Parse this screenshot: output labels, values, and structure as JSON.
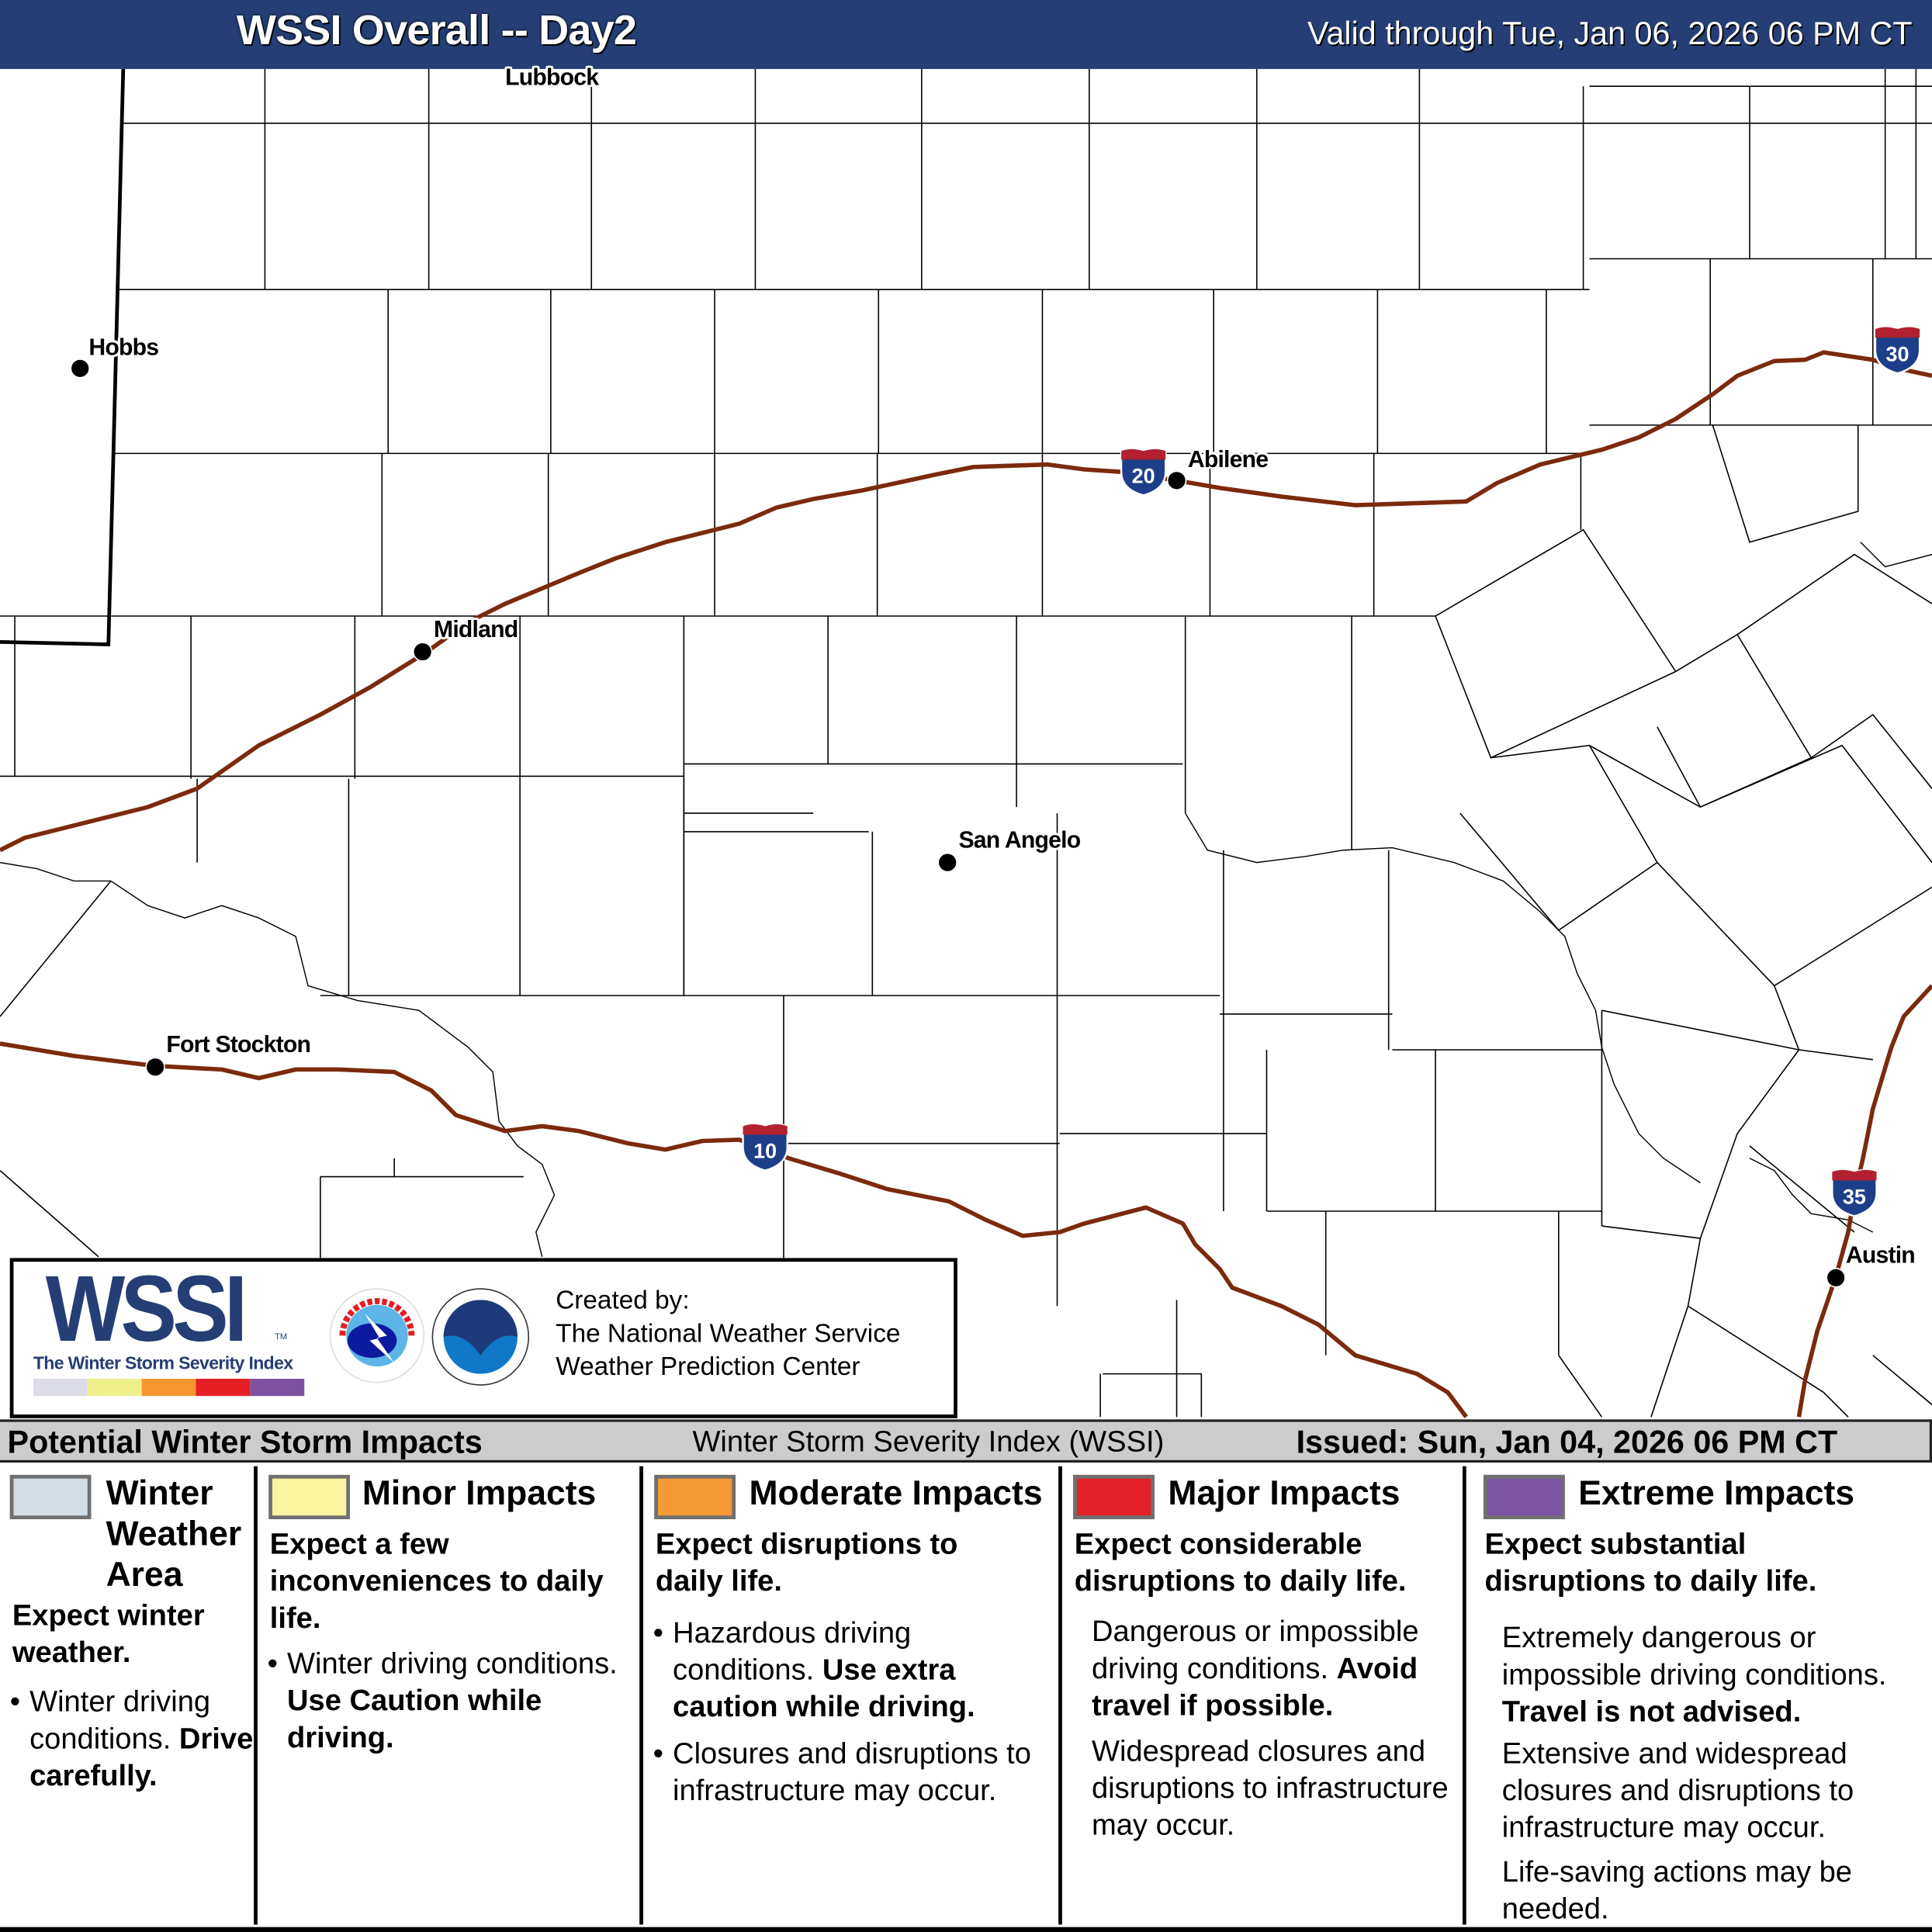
{
  "header": {
    "title": "WSSI Overall -- Day2",
    "valid": "Valid through Tue, Jan 06, 2026 06 PM CT",
    "background": "#253e75"
  },
  "map": {
    "cities": [
      {
        "name": "Lubbock"
      },
      {
        "name": "Hobbs"
      },
      {
        "name": "Abilene"
      },
      {
        "name": "Midland"
      },
      {
        "name": "San Angelo"
      },
      {
        "name": "Fort Stockton"
      },
      {
        "name": "Austin"
      }
    ],
    "interstates": [
      "20",
      "30",
      "10",
      "35"
    ],
    "highway_color": "#7b2a0e"
  },
  "logo": {
    "wssi": "WSSI",
    "wssi_subtitle": "The Winter Storm Severity Index",
    "tm": "TM",
    "scale_colors": [
      "#dcdce8",
      "#eef08a",
      "#f7962e",
      "#e51f24",
      "#7e51a0"
    ],
    "nws_lettering": "NATIONAL WEATHER SERVICE",
    "noaa_lettering": "NOAA",
    "created_by": "Created by:",
    "creator1": "The National Weather Service",
    "creator2": "Weather Prediction Center"
  },
  "legend": {
    "heading": "Potential Winter Storm Impacts",
    "center": "Winter Storm Severity Index (WSSI)",
    "issued": "Issued: Sun, Jan 04, 2026 06 PM CT",
    "categories": [
      {
        "color": "#d3dde6",
        "title1": "Winter",
        "title2": "Weather",
        "title3": "Area",
        "summary": "Expect winter weather.",
        "b1": "Winter driving conditions.",
        "b1_bold": "Drive carefully."
      },
      {
        "color": "#f8f4a0",
        "title": "Minor Impacts",
        "summary": "Expect a few inconveniences to daily life.",
        "b1": "Winter driving conditions.",
        "b1_bold": "Use Caution while driving."
      },
      {
        "color": "#f59a35",
        "title": "Moderate Impacts",
        "summary": "Expect disruptions to daily life.",
        "b1": "Hazardous driving conditions.",
        "b1_bold": "Use extra caution while driving.",
        "b2": "Closures and disruptions to infrastructure may occur."
      },
      {
        "color": "#e3212b",
        "title": "Major Impacts",
        "summary": "Expect considerable disruptions to daily life.",
        "b1": "Dangerous or impossible driving conditions.",
        "b1_bold": "Avoid travel if possible.",
        "b2": "Widespread closures and disruptions to infrastructure may occur."
      },
      {
        "color": "#7b55a2",
        "title": "Extreme Impacts",
        "summary": "Expect substantial disruptions to daily life.",
        "b1": "Extremely dangerous or impossible driving conditions.",
        "b1_bold": "Travel is not advised.",
        "b2": "Extensive and widespread closures and disruptions to infrastructure may occur.",
        "b3": "Life-saving actions may be needed."
      }
    ]
  }
}
